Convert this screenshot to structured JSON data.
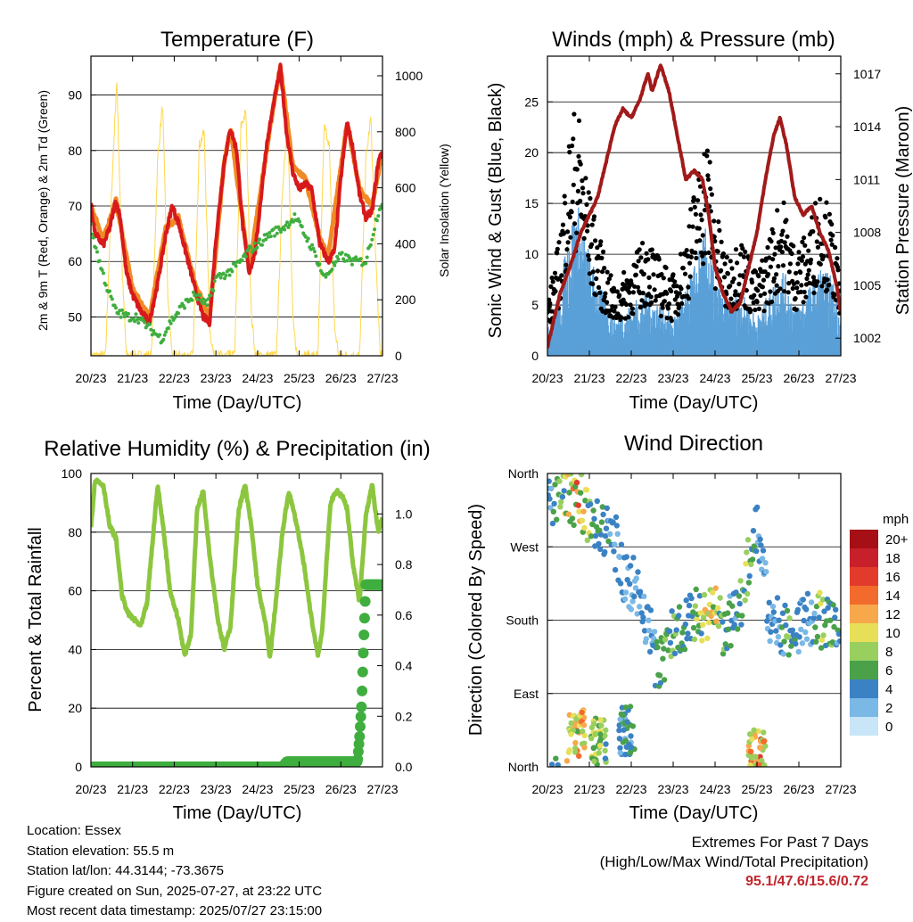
{
  "info": {
    "location": "Location: Essex",
    "elevation": "Station elevation: 55.5 m",
    "latlon": "Station lat/lon: 44.3144; -73.3675",
    "created": "Figure created on Sun, 2025-07-27, at 23:22 UTC",
    "recent": "Most recent data timestamp: 2025/07/27 23:15:00"
  },
  "extremes": {
    "title": "Extremes For Past 7 Days",
    "subtitle": "(High/Low/Max Wind/Total Precipitation)",
    "values": "95.1/47.6/15.6/0.72"
  },
  "colors": {
    "temp2m": "#d7191c",
    "temp9m": "#f08a24",
    "dewpoint": "#3fae3f",
    "solar": "#ffd84d",
    "wind": "#5aa0d8",
    "gust": "#000000",
    "pressure": "#a11a1a",
    "rh": "#8cc63f",
    "precip": "#3fae3f"
  },
  "chart_data": [
    {
      "type": "line",
      "title": "Temperature (F)",
      "xlabel": "Time (Day/UTC)",
      "ylabel": "2m & 9m T (Red, Orange) & 2m Td (Green)",
      "y2label": "Solar Insolation (Yellow)",
      "x_ticks": [
        "20/23",
        "21/23",
        "22/23",
        "23/23",
        "24/23",
        "25/23",
        "26/23",
        "27/23"
      ],
      "y_ticks": [
        "50",
        "60",
        "70",
        "80",
        "90"
      ],
      "y2_ticks": [
        "0",
        "200",
        "400",
        "600",
        "800",
        "1000"
      ],
      "xlim": [
        0,
        7
      ],
      "ylim": [
        43,
        97
      ],
      "y2lim": [
        0,
        1070
      ],
      "series": [
        {
          "name": "2m T",
          "values": [
            [
              0,
              70
            ],
            [
              0.1,
              65
            ],
            [
              0.3,
              63
            ],
            [
              0.45,
              66
            ],
            [
              0.6,
              71
            ],
            [
              0.7,
              68
            ],
            [
              0.85,
              58
            ],
            [
              1.0,
              54
            ],
            [
              1.2,
              51
            ],
            [
              1.4,
              49
            ],
            [
              1.6,
              56
            ],
            [
              1.8,
              65
            ],
            [
              1.95,
              70
            ],
            [
              2.1,
              67
            ],
            [
              2.3,
              61
            ],
            [
              2.5,
              55
            ],
            [
              2.7,
              50
            ],
            [
              2.85,
              49
            ],
            [
              3.0,
              64
            ],
            [
              3.2,
              78
            ],
            [
              3.35,
              84
            ],
            [
              3.5,
              80
            ],
            [
              3.65,
              66
            ],
            [
              3.8,
              58
            ],
            [
              3.95,
              62
            ],
            [
              4.2,
              80
            ],
            [
              4.4,
              89
            ],
            [
              4.55,
              95
            ],
            [
              4.7,
              83
            ],
            [
              4.85,
              76
            ],
            [
              5.0,
              73
            ],
            [
              5.15,
              74
            ],
            [
              5.3,
              73
            ],
            [
              5.5,
              63
            ],
            [
              5.7,
              60
            ],
            [
              5.85,
              62
            ],
            [
              6.0,
              75
            ],
            [
              6.15,
              85
            ],
            [
              6.3,
              80
            ],
            [
              6.45,
              72
            ],
            [
              6.6,
              68
            ],
            [
              6.75,
              69
            ],
            [
              6.9,
              78
            ],
            [
              7.0,
              80
            ]
          ]
        },
        {
          "name": "9m T",
          "values": [
            [
              0,
              70
            ],
            [
              0.3,
              64
            ],
            [
              0.6,
              71
            ],
            [
              1.0,
              55
            ],
            [
              1.4,
              50
            ],
            [
              1.8,
              66
            ],
            [
              2.1,
              68
            ],
            [
              2.5,
              56
            ],
            [
              2.85,
              50
            ],
            [
              3.2,
              78
            ],
            [
              3.35,
              84
            ],
            [
              3.65,
              67
            ],
            [
              3.8,
              59
            ],
            [
              4.4,
              89
            ],
            [
              4.55,
              95
            ],
            [
              4.85,
              77
            ],
            [
              5.15,
              75
            ],
            [
              5.5,
              64
            ],
            [
              5.7,
              61
            ],
            [
              6.15,
              85
            ],
            [
              6.45,
              73
            ],
            [
              6.75,
              70
            ],
            [
              7.0,
              80
            ]
          ]
        },
        {
          "name": "2m Td",
          "values": [
            [
              0,
              66
            ],
            [
              0.2,
              60
            ],
            [
              0.4,
              55
            ],
            [
              0.6,
              51
            ],
            [
              0.9,
              50
            ],
            [
              1.1,
              50
            ],
            [
              1.4,
              48
            ],
            [
              1.7,
              46
            ],
            [
              1.9,
              49
            ],
            [
              2.2,
              52
            ],
            [
              2.5,
              54
            ],
            [
              2.8,
              52
            ],
            [
              3.0,
              57
            ],
            [
              3.3,
              58
            ],
            [
              3.6,
              60
            ],
            [
              3.8,
              62
            ],
            [
              4.0,
              63
            ],
            [
              4.3,
              65
            ],
            [
              4.6,
              66
            ],
            [
              4.9,
              68
            ],
            [
              5.2,
              64
            ],
            [
              5.4,
              61
            ],
            [
              5.6,
              57
            ],
            [
              5.8,
              59
            ],
            [
              6.0,
              61
            ],
            [
              6.3,
              60
            ],
            [
              6.6,
              60
            ],
            [
              6.9,
              69
            ],
            [
              7.0,
              71
            ]
          ]
        },
        {
          "name": "Solar",
          "values": [
            [
              0,
              0
            ],
            [
              0.35,
              0
            ],
            [
              0.5,
              600
            ],
            [
              0.62,
              990
            ],
            [
              0.75,
              300
            ],
            [
              0.85,
              0
            ],
            [
              1.45,
              0
            ],
            [
              1.6,
              700
            ],
            [
              1.72,
              900
            ],
            [
              1.85,
              200
            ],
            [
              1.95,
              0
            ],
            [
              2.45,
              0
            ],
            [
              2.6,
              750
            ],
            [
              2.72,
              800
            ],
            [
              2.85,
              100
            ],
            [
              2.95,
              0
            ],
            [
              3.45,
              0
            ],
            [
              3.6,
              820
            ],
            [
              3.72,
              870
            ],
            [
              3.85,
              150
            ],
            [
              3.95,
              0
            ],
            [
              4.45,
              0
            ],
            [
              4.6,
              600
            ],
            [
              4.72,
              850
            ],
            [
              4.85,
              120
            ],
            [
              4.95,
              0
            ],
            [
              5.45,
              0
            ],
            [
              5.6,
              820
            ],
            [
              5.72,
              760
            ],
            [
              5.85,
              100
            ],
            [
              5.95,
              0
            ],
            [
              6.45,
              0
            ],
            [
              6.6,
              700
            ],
            [
              6.72,
              850
            ],
            [
              6.85,
              300
            ],
            [
              6.95,
              0
            ],
            [
              7.0,
              0
            ]
          ]
        }
      ]
    },
    {
      "type": "scatter",
      "title": "Winds (mph) & Pressure (mb)",
      "xlabel": "Time (Day/UTC)",
      "ylabel": "Sonic Wind & Gust (Blue, Black)",
      "y2label": "Station Pressure (Maroon)",
      "x_ticks": [
        "20/23",
        "21/23",
        "22/23",
        "23/23",
        "24/23",
        "25/23",
        "26/23",
        "27/23"
      ],
      "y_ticks": [
        "0",
        "5",
        "10",
        "15",
        "20",
        "25"
      ],
      "y2_ticks": [
        "1002",
        "1005",
        "1008",
        "1011",
        "1014",
        "1017"
      ],
      "xlim": [
        0,
        7
      ],
      "ylim": [
        0,
        29.5
      ],
      "y2lim": [
        1001,
        1018
      ],
      "series": [
        {
          "name": "Pressure",
          "values": [
            [
              0,
              1001.5
            ],
            [
              0.3,
              1004.5
            ],
            [
              0.6,
              1006.5
            ],
            [
              0.8,
              1008
            ],
            [
              1.0,
              1009
            ],
            [
              1.2,
              1010
            ],
            [
              1.4,
              1012
            ],
            [
              1.6,
              1014
            ],
            [
              1.8,
              1015
            ],
            [
              2.0,
              1014.5
            ],
            [
              2.2,
              1015.5
            ],
            [
              2.4,
              1017
            ],
            [
              2.5,
              1016
            ],
            [
              2.7,
              1017.5
            ],
            [
              2.9,
              1016
            ],
            [
              3.1,
              1013.5
            ],
            [
              3.3,
              1011
            ],
            [
              3.5,
              1011.5
            ],
            [
              3.7,
              1011
            ],
            [
              3.85,
              1009
            ],
            [
              4.0,
              1006
            ],
            [
              4.2,
              1004.5
            ],
            [
              4.4,
              1003.5
            ],
            [
              4.6,
              1004
            ],
            [
              4.8,
              1006
            ],
            [
              5.0,
              1008
            ],
            [
              5.2,
              1011
            ],
            [
              5.4,
              1013.5
            ],
            [
              5.55,
              1014.5
            ],
            [
              5.7,
              1013
            ],
            [
              5.9,
              1010
            ],
            [
              6.1,
              1009
            ],
            [
              6.3,
              1009.5
            ],
            [
              6.5,
              1008
            ],
            [
              6.7,
              1007
            ],
            [
              6.9,
              1005
            ],
            [
              7.0,
              1003.5
            ]
          ]
        }
      ]
    },
    {
      "type": "line",
      "title": "Relative Humidity (%) & Precipitation (in)",
      "xlabel": "Time (Day/UTC)",
      "ylabel": "Percent & Total Rainfall",
      "x_ticks": [
        "20/23",
        "21/23",
        "22/23",
        "23/23",
        "24/23",
        "25/23",
        "26/23",
        "27/23"
      ],
      "y_ticks": [
        "0",
        "20",
        "40",
        "60",
        "80",
        "100"
      ],
      "y2_ticks": [
        "0.0",
        "0.2",
        "0.4",
        "0.6",
        "0.8",
        "1.0"
      ],
      "xlim": [
        0,
        7
      ],
      "ylim": [
        0,
        100
      ],
      "y2lim": [
        0,
        1.16
      ],
      "series": [
        {
          "name": "RH",
          "values": [
            [
              0,
              82
            ],
            [
              0.1,
              98
            ],
            [
              0.3,
              96
            ],
            [
              0.45,
              82
            ],
            [
              0.6,
              78
            ],
            [
              0.75,
              58
            ],
            [
              0.9,
              52
            ],
            [
              1.05,
              50
            ],
            [
              1.2,
              48
            ],
            [
              1.35,
              56
            ],
            [
              1.5,
              80
            ],
            [
              1.6,
              96
            ],
            [
              1.75,
              80
            ],
            [
              1.9,
              60
            ],
            [
              2.1,
              50
            ],
            [
              2.25,
              38
            ],
            [
              2.4,
              45
            ],
            [
              2.55,
              88
            ],
            [
              2.7,
              94
            ],
            [
              2.85,
              72
            ],
            [
              3.05,
              50
            ],
            [
              3.2,
              40
            ],
            [
              3.35,
              48
            ],
            [
              3.55,
              88
            ],
            [
              3.7,
              96
            ],
            [
              3.85,
              82
            ],
            [
              4.0,
              62
            ],
            [
              4.2,
              48
            ],
            [
              4.3,
              37
            ],
            [
              4.45,
              58
            ],
            [
              4.6,
              80
            ],
            [
              4.75,
              94
            ],
            [
              4.95,
              82
            ],
            [
              5.1,
              70
            ],
            [
              5.3,
              50
            ],
            [
              5.45,
              38
            ],
            [
              5.55,
              46
            ],
            [
              5.75,
              90
            ],
            [
              5.9,
              94
            ],
            [
              6.05,
              92
            ],
            [
              6.15,
              88
            ],
            [
              6.3,
              68
            ],
            [
              6.45,
              56
            ],
            [
              6.6,
              86
            ],
            [
              6.75,
              96
            ],
            [
              6.9,
              80
            ],
            [
              7.0,
              85
            ]
          ]
        },
        {
          "name": "Precipitation",
          "values": [
            [
              0,
              0
            ],
            [
              4.6,
              0
            ],
            [
              4.7,
              0.02
            ],
            [
              6.4,
              0.02
            ],
            [
              6.45,
              0.12
            ],
            [
              6.5,
              0.25
            ],
            [
              6.55,
              0.5
            ],
            [
              6.6,
              0.72
            ],
            [
              7.0,
              0.72
            ]
          ]
        }
      ]
    },
    {
      "type": "scatter",
      "title": "Wind Direction",
      "xlabel": "Time (Day/UTC)",
      "ylabel": "Direction (Colored By Speed)",
      "x_ticks": [
        "20/23",
        "21/23",
        "22/23",
        "23/23",
        "24/23",
        "25/23",
        "26/23",
        "27/23"
      ],
      "y_ticks": [
        "North",
        "East",
        "South",
        "West",
        "North"
      ],
      "xlim": [
        0,
        7
      ],
      "ylim": [
        0,
        360
      ],
      "legend": {
        "unit": "mph",
        "labels": [
          "20+",
          "18",
          "16",
          "14",
          "12",
          "10",
          "8",
          "6",
          "4",
          "2",
          "0"
        ],
        "colors": [
          "#a50f15",
          "#c8202a",
          "#e33b2b",
          "#f26b2d",
          "#f6a84b",
          "#e8df58",
          "#98cf5f",
          "#4aa14a",
          "#3b82c4",
          "#7ab8e6",
          "#c8e6f7"
        ]
      }
    }
  ]
}
